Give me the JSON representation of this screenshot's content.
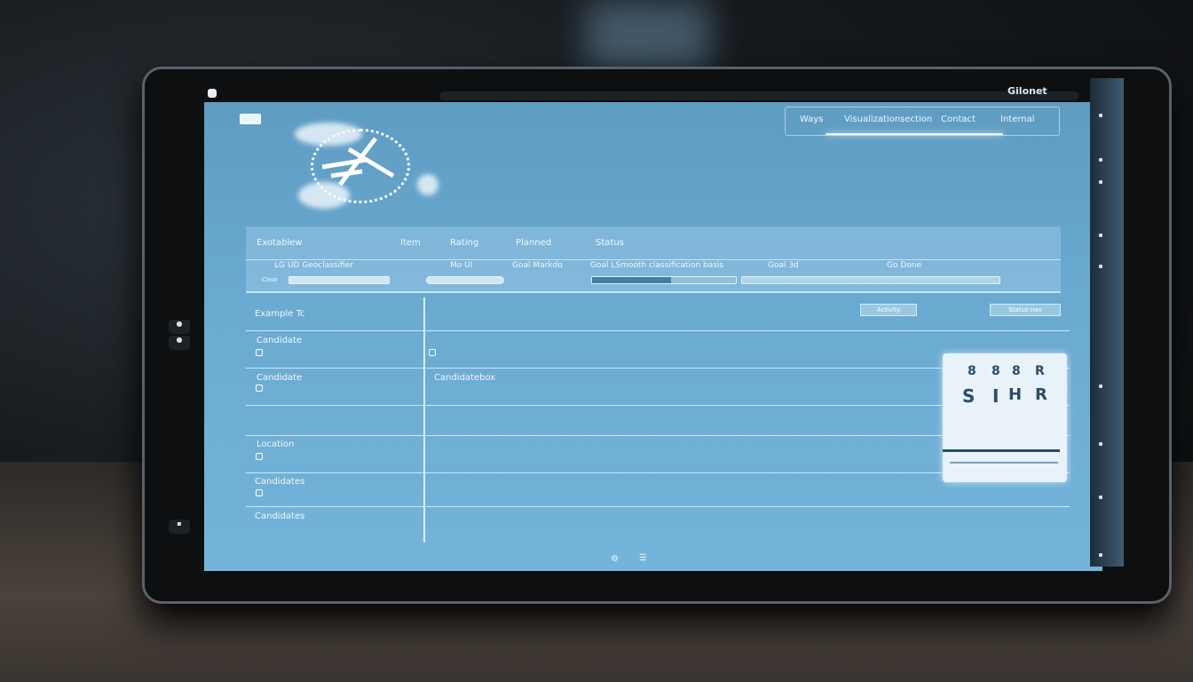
{
  "device": {
    "brand": "Gilonet"
  },
  "nav": {
    "items": [
      "Ways",
      "Visualizationsection",
      "Contact",
      "Internal"
    ]
  },
  "table": {
    "headers": [
      "Exotablew",
      "Item",
      "Rating",
      "Planned",
      "Status"
    ],
    "subheader": {
      "col1": "LG UD  Geoclassifier",
      "col1_filter": "Clear",
      "col2": "Mo UI",
      "col3": "Goal Markdo",
      "col4": "Goal LSmooth classification basis",
      "col5": "Goal 3d",
      "col6": "Go Done"
    },
    "progress_percent": 55,
    "first_row": {
      "label": "Example Tc",
      "badge1": "Activity",
      "badge2": "Status nav"
    },
    "rows": [
      {
        "label": "Candidate",
        "cell": ""
      },
      {
        "label": "Candidate",
        "cell": "Candidatebox"
      },
      {
        "label": "",
        "cell": ""
      },
      {
        "label": "Location",
        "cell": ""
      },
      {
        "label": "Candidates",
        "cell": ""
      },
      {
        "label": "Candidates",
        "cell": ""
      }
    ]
  },
  "widget": {
    "glyphs": [
      "8",
      "8",
      "8",
      "R",
      "S",
      "I",
      "H",
      "R"
    ]
  },
  "bottom": {
    "icons": [
      "settings-icon",
      "menu-icon"
    ]
  }
}
